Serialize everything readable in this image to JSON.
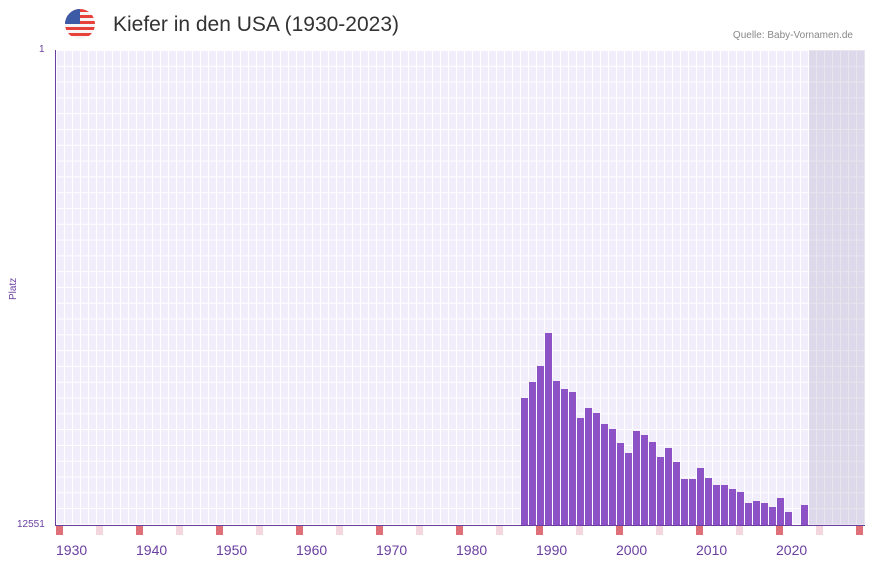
{
  "header": {
    "title": "Kiefer in den USA (1930-2023)",
    "source": "Quelle: Baby-Vornamen.de",
    "flag_icon": "us-flag-icon"
  },
  "colors": {
    "bar": "#8c52c6",
    "axis": "#6a3fa0",
    "marker_decade": "#e07078",
    "marker_half": "#f3d6de"
  },
  "chart_data": {
    "type": "bar",
    "title": "Kiefer in den USA (1930-2023)",
    "xlabel": "",
    "ylabel": "Platz",
    "ylim": [
      12551,
      1
    ],
    "y_inverted": true,
    "x_ticks": [
      "1930",
      "1940",
      "1950",
      "1960",
      "1970",
      "1980",
      "1990",
      "2000",
      "2010",
      "2020"
    ],
    "categories": [
      "1988",
      "1989",
      "1990",
      "1991",
      "1992",
      "1993",
      "1994",
      "1995",
      "1996",
      "1997",
      "1998",
      "1999",
      "2000",
      "2001",
      "2002",
      "2003",
      "2004",
      "2005",
      "2006",
      "2007",
      "2008",
      "2009",
      "2010",
      "2011",
      "2012",
      "2013",
      "2014",
      "2015",
      "2016",
      "2017",
      "2018",
      "2019",
      "2020",
      "2021",
      "2023"
    ],
    "values": [
      9195,
      8773,
      8350,
      7478,
      8746,
      8957,
      9037,
      9724,
      9460,
      9592,
      9882,
      10014,
      10384,
      10649,
      10067,
      10173,
      10358,
      10754,
      10516,
      10886,
      11335,
      11335,
      11044,
      11309,
      11494,
      11494,
      11600,
      11679,
      11970,
      11917,
      11970,
      12075,
      11838,
      12207,
      12022
    ],
    "grid": true,
    "legend": null
  },
  "axis": {
    "y_top": "1",
    "y_bottom": "12551",
    "y_label": "Platz"
  }
}
